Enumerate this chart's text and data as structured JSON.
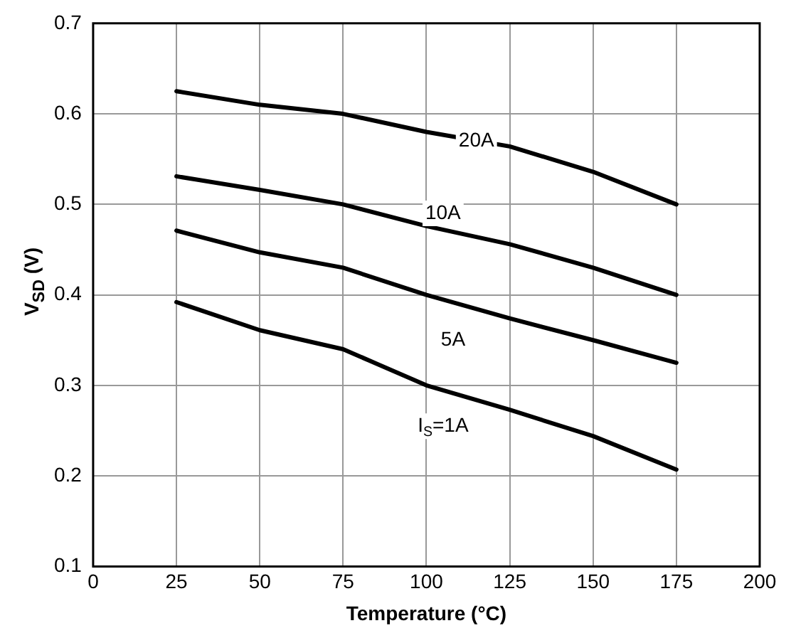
{
  "chart_data": {
    "type": "line",
    "xlabel": "Temperature (°C)",
    "ylabel": "V$_{SD}$ (V)",
    "xlim": [
      0,
      200
    ],
    "xticks": [
      0,
      25,
      50,
      75,
      100,
      125,
      150,
      175,
      200
    ],
    "ylim": [
      0.1,
      0.7
    ],
    "yticks": [
      0.1,
      0.2,
      0.3,
      0.4,
      0.5,
      0.6,
      0.7
    ],
    "grid": true,
    "legend": false,
    "marker": "none",
    "line_style": "solid",
    "x": [
      25,
      50,
      75,
      100,
      125,
      150,
      175
    ],
    "series": [
      {
        "color": "#000000",
        "values": [
          0.625,
          0.61,
          0.6,
          0.58,
          0.564,
          0.536,
          0.5
        ]
      },
      {
        "color": "#000000",
        "values": [
          0.531,
          0.516,
          0.5,
          0.476,
          0.456,
          0.43,
          0.4
        ]
      },
      {
        "color": "#000000",
        "values": [
          0.471,
          0.447,
          0.43,
          0.4,
          0.374,
          0.35,
          0.325
        ]
      },
      {
        "color": "#000000",
        "values": [
          0.392,
          0.361,
          0.34,
          0.3,
          0.273,
          0.244,
          0.207
        ]
      }
    ],
    "annotations": [
      {
        "text": "20A",
        "x": 115,
        "y": 0.57
      },
      {
        "text": "10A",
        "x": 105,
        "y": 0.49
      },
      {
        "text": "5A",
        "x": 108,
        "y": 0.35
      },
      {
        "text": "I$_{S}$=1A",
        "x": 105,
        "y": 0.255
      }
    ]
  }
}
